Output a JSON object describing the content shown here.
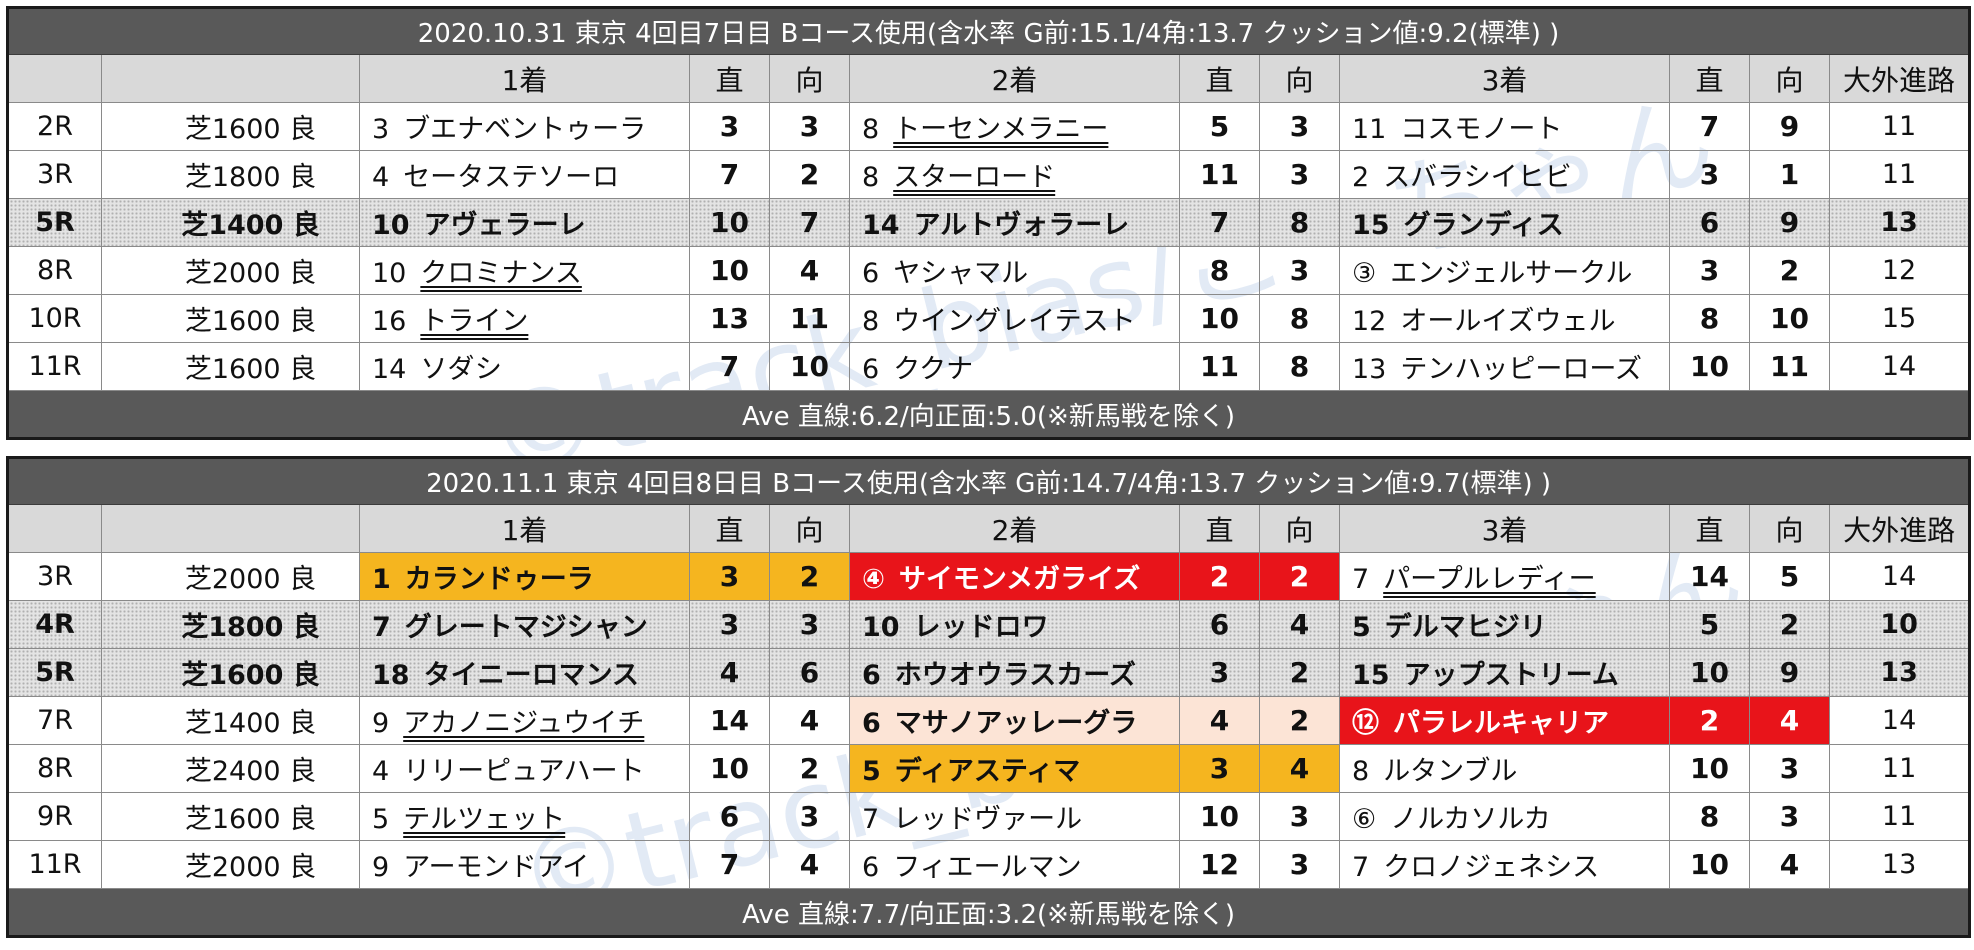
{
  "tables": [
    {
      "header": "2020.10.31 東京 4回目7日目 Bコース使用(含水率 G前:15.1/4角:13.7 クッション値:9.2(標準) )",
      "columns": [
        "",
        "",
        "1着",
        "直",
        "向",
        "2着",
        "直",
        "向",
        "3着",
        "直",
        "向",
        "大外進路"
      ],
      "rows": [
        {
          "race": "2R",
          "course": "芝1600 良",
          "style": "",
          "p1": {
            "num": "3",
            "name": "ブエナベントゥーラ",
            "ul": false,
            "hl": ""
          },
          "s1": "3",
          "m1": "3",
          "p2": {
            "num": "8",
            "name": "トーセンメラニー",
            "ul": true,
            "hl": ""
          },
          "s2": "5",
          "m2": "3",
          "p3": {
            "num": "11",
            "name": "コスモノート",
            "ul": false,
            "hl": ""
          },
          "s3": "7",
          "m3": "9",
          "wide": "11"
        },
        {
          "race": "3R",
          "course": "芝1800 良",
          "style": "",
          "p1": {
            "num": "4",
            "name": "セータステソーロ",
            "ul": false,
            "hl": ""
          },
          "s1": "7",
          "m1": "2",
          "p2": {
            "num": "8",
            "name": "スターロード",
            "ul": true,
            "hl": ""
          },
          "s2": "11",
          "m2": "3",
          "p3": {
            "num": "2",
            "name": "スバラシイヒビ",
            "ul": false,
            "hl": ""
          },
          "s3": "3",
          "m3": "1",
          "wide": "11"
        },
        {
          "race": "5R",
          "course": "芝1400 良",
          "style": "dot",
          "p1": {
            "num": "10",
            "name": "アヴェラーレ",
            "ul": false,
            "hl": ""
          },
          "s1": "10",
          "m1": "7",
          "p2": {
            "num": "14",
            "name": "アルトヴォラーレ",
            "ul": false,
            "hl": ""
          },
          "s2": "7",
          "m2": "8",
          "p3": {
            "num": "15",
            "name": "グランディス",
            "ul": false,
            "hl": ""
          },
          "s3": "6",
          "m3": "9",
          "wide": "13"
        },
        {
          "race": "8R",
          "course": "芝2000 良",
          "style": "",
          "p1": {
            "num": "10",
            "name": "クロミナンス",
            "ul": true,
            "hl": ""
          },
          "s1": "10",
          "m1": "4",
          "p2": {
            "num": "6",
            "name": "ヤシャマル",
            "ul": false,
            "hl": ""
          },
          "s2": "8",
          "m2": "3",
          "p3": {
            "num": "③",
            "name": "エンジェルサークル",
            "ul": false,
            "hl": ""
          },
          "s3": "3",
          "m3": "2",
          "wide": "12"
        },
        {
          "race": "10R",
          "course": "芝1600 良",
          "style": "",
          "p1": {
            "num": "16",
            "name": "トライン",
            "ul": true,
            "hl": ""
          },
          "s1": "13",
          "m1": "11",
          "p2": {
            "num": "8",
            "name": "ウイングレイテスト",
            "ul": false,
            "hl": ""
          },
          "s2": "10",
          "m2": "8",
          "p3": {
            "num": "12",
            "name": "オールイズウェル",
            "ul": false,
            "hl": ""
          },
          "s3": "8",
          "m3": "10",
          "wide": "15"
        },
        {
          "race": "11R",
          "course": "芝1600 良",
          "style": "",
          "p1": {
            "num": "14",
            "name": "ソダシ",
            "ul": false,
            "hl": ""
          },
          "s1": "7",
          "m1": "10",
          "p2": {
            "num": "6",
            "name": "ククナ",
            "ul": false,
            "hl": ""
          },
          "s2": "11",
          "m2": "8",
          "p3": {
            "num": "13",
            "name": "テンハッピーローズ",
            "ul": false,
            "hl": ""
          },
          "s3": "10",
          "m3": "11",
          "wide": "14"
        }
      ],
      "footer": "Ave 直線:6.2/向正面:5.0(※新馬戦を除く)"
    },
    {
      "header": "2020.11.1 東京 4回目8日目 Bコース使用(含水率 G前:14.7/4角:13.7 クッション値:9.7(標準) )",
      "columns": [
        "",
        "",
        "1着",
        "直",
        "向",
        "2着",
        "直",
        "向",
        "3着",
        "直",
        "向",
        "大外進路"
      ],
      "rows": [
        {
          "race": "3R",
          "course": "芝2000 良",
          "style": "",
          "p1": {
            "num": "1",
            "name": "カランドゥーラ",
            "ul": false,
            "hl": "orange"
          },
          "s1": "3",
          "m1": "2",
          "p2": {
            "num": "④",
            "name": "サイモンメガライズ",
            "ul": false,
            "hl": "red"
          },
          "s2": "2",
          "m2": "2",
          "p3": {
            "num": "7",
            "name": "パープルレディー",
            "ul": true,
            "hl": ""
          },
          "s3": "14",
          "m3": "5",
          "wide": "14"
        },
        {
          "race": "4R",
          "course": "芝1800 良",
          "style": "dot",
          "p1": {
            "num": "7",
            "name": "グレートマジシャン",
            "ul": false,
            "hl": ""
          },
          "s1": "3",
          "m1": "3",
          "p2": {
            "num": "10",
            "name": "レッドロワ",
            "ul": false,
            "hl": ""
          },
          "s2": "6",
          "m2": "4",
          "p3": {
            "num": "5",
            "name": "デルマヒジリ",
            "ul": false,
            "hl": ""
          },
          "s3": "5",
          "m3": "2",
          "wide": "10"
        },
        {
          "race": "5R",
          "course": "芝1600 良",
          "style": "dot",
          "p1": {
            "num": "18",
            "name": "タイニーロマンス",
            "ul": false,
            "hl": ""
          },
          "s1": "4",
          "m1": "6",
          "p2": {
            "num": "6",
            "name": "ホウオウラスカーズ",
            "ul": false,
            "hl": ""
          },
          "s2": "3",
          "m2": "2",
          "p3": {
            "num": "15",
            "name": "アップストリーム",
            "ul": false,
            "hl": ""
          },
          "s3": "10",
          "m3": "9",
          "wide": "13"
        },
        {
          "race": "7R",
          "course": "芝1400 良",
          "style": "",
          "p1": {
            "num": "9",
            "name": "アカノニジュウイチ",
            "ul": true,
            "hl": ""
          },
          "s1": "14",
          "m1": "4",
          "p2": {
            "num": "6",
            "name": "マサノアッレーグラ",
            "ul": false,
            "hl": "peach"
          },
          "s2": "4",
          "m2": "2",
          "p3": {
            "num": "⑫",
            "name": "パラレルキャリア",
            "ul": false,
            "hl": "red"
          },
          "s3": "2",
          "m3": "4",
          "wide": "14"
        },
        {
          "race": "8R",
          "course": "芝2400 良",
          "style": "",
          "p1": {
            "num": "4",
            "name": "リリーピュアハート",
            "ul": false,
            "hl": ""
          },
          "s1": "10",
          "m1": "2",
          "p2": {
            "num": "5",
            "name": "ディアスティマ",
            "ul": false,
            "hl": "orange"
          },
          "s2": "3",
          "m2": "4",
          "p3": {
            "num": "8",
            "name": "ルタンブル",
            "ul": false,
            "hl": ""
          },
          "s3": "10",
          "m3": "3",
          "wide": "11"
        },
        {
          "race": "9R",
          "course": "芝1600 良",
          "style": "",
          "p1": {
            "num": "5",
            "name": "テルツェット",
            "ul": true,
            "hl": ""
          },
          "s1": "6",
          "m1": "3",
          "p2": {
            "num": "7",
            "name": "レッドヴァール",
            "ul": false,
            "hl": ""
          },
          "s2": "10",
          "m2": "3",
          "p3": {
            "num": "⑥",
            "name": "ノルカソルカ",
            "ul": false,
            "hl": ""
          },
          "s3": "8",
          "m3": "3",
          "wide": "11"
        },
        {
          "race": "11R",
          "course": "芝2000 良",
          "style": "",
          "p1": {
            "num": "9",
            "name": "アーモンドアイ",
            "ul": false,
            "hl": ""
          },
          "s1": "7",
          "m1": "4",
          "p2": {
            "num": "6",
            "name": "フィエールマン",
            "ul": false,
            "hl": ""
          },
          "s2": "12",
          "m2": "3",
          "p3": {
            "num": "7",
            "name": "クロノジェネシス",
            "ul": false,
            "hl": ""
          },
          "s3": "10",
          "m3": "4",
          "wide": "13"
        }
      ],
      "footer": "Ave 直線:7.7/向正面:3.2(※新馬戦を除く)"
    }
  ],
  "watermark": "©track_bias/こーちゃん",
  "colors": {
    "header_bg": "#595959",
    "colhead_bg": "#d9d9d9",
    "orange": "#f5b51f",
    "red": "#e8141a",
    "peach": "#fce4d6"
  }
}
